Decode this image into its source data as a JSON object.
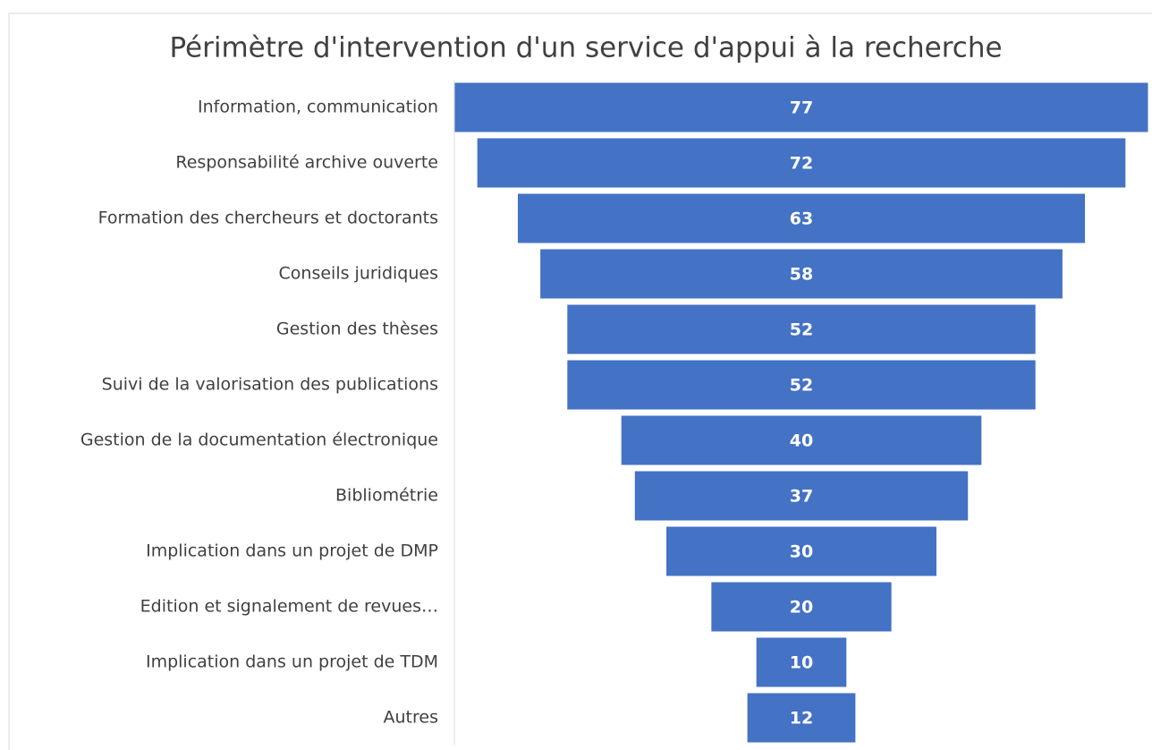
{
  "chart_data": {
    "type": "funnel",
    "title": "Périmètre d'intervention d'un service d'appui à la recherche",
    "categories": [
      "Information, communication",
      "Responsabilité archive ouverte",
      "Formation des chercheurs et doctorants",
      "Conseils juridiques",
      "Gestion des thèses",
      "Suivi de la valorisation des publications",
      "Gestion de la documentation électronique",
      "Bibliométrie",
      "Implication dans un projet de DMP",
      "Edition et signalement de revues…",
      "Implication dans un projet de TDM",
      "Autres"
    ],
    "values": [
      77,
      72,
      63,
      58,
      52,
      52,
      40,
      37,
      30,
      20,
      10,
      12
    ],
    "color": "#4472c4"
  }
}
